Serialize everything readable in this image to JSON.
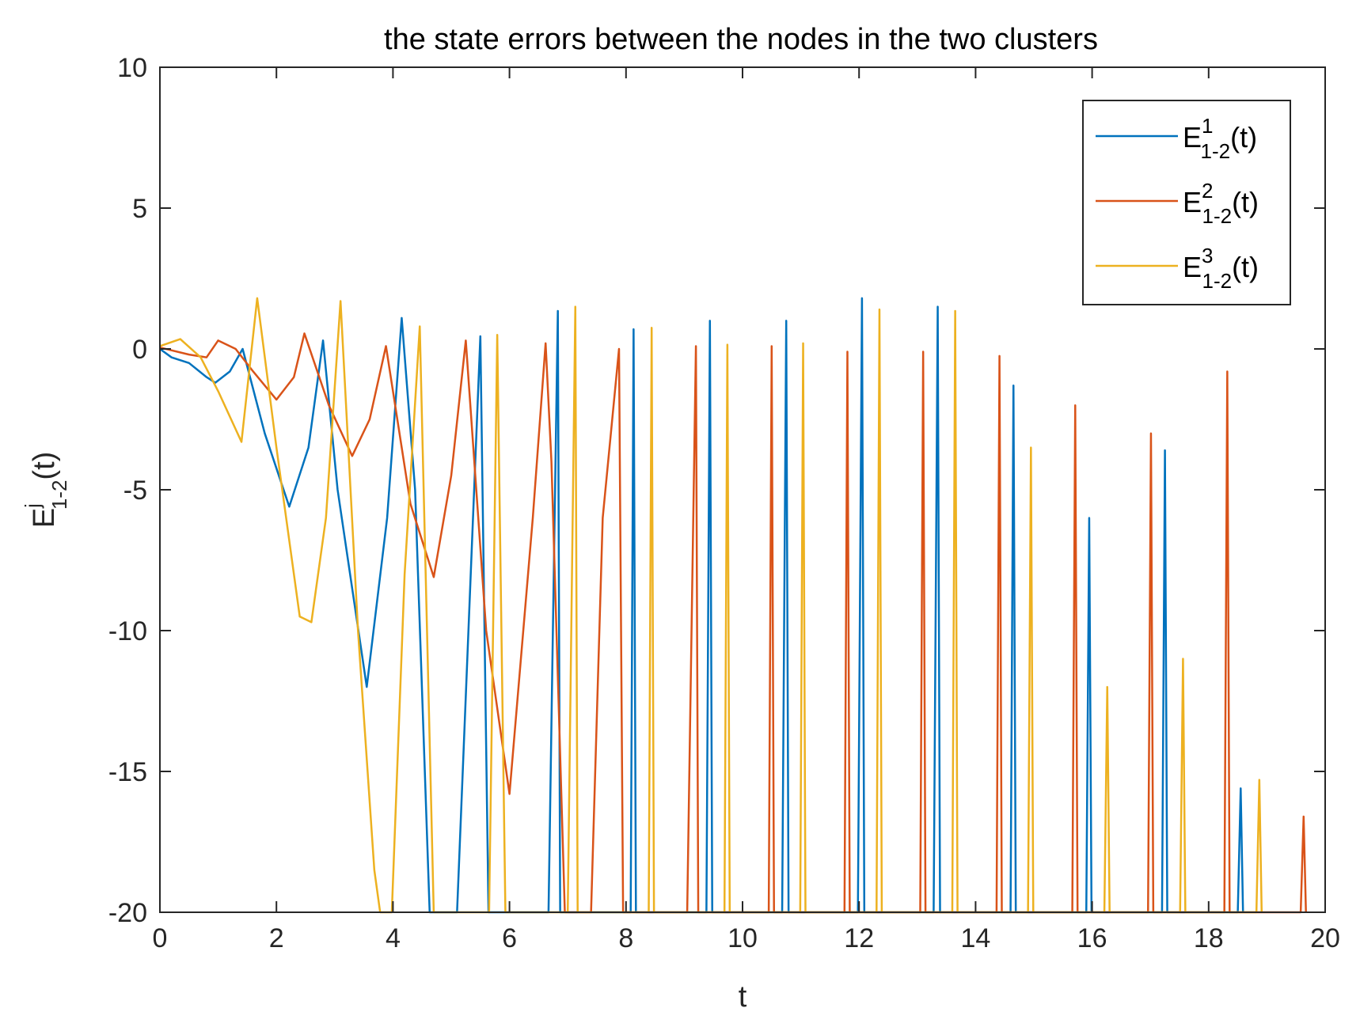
{
  "chart_data": {
    "type": "line",
    "title": "the state errors between the nodes in the two clusters",
    "xlabel": "t",
    "ylabel": {
      "base": "E",
      "superscript": "j",
      "subscript": "1-2",
      "suffix": "(t)"
    },
    "xlim": [
      0,
      20
    ],
    "ylim": [
      -20,
      10
    ],
    "xticks": [
      0,
      2,
      4,
      6,
      8,
      10,
      12,
      14,
      16,
      18,
      20
    ],
    "xtick_labels": [
      "0",
      "2",
      "4",
      "6",
      "8",
      "10",
      "12",
      "14",
      "16",
      "18",
      "20"
    ],
    "yticks": [
      -20,
      -15,
      -10,
      -5,
      0,
      5,
      10
    ],
    "ytick_labels": [
      "-20",
      "-15",
      "-10",
      "-5",
      "0",
      "5",
      "10"
    ],
    "grid": false,
    "legend_position": "top-right",
    "series": [
      {
        "name": "E_{1-2}^{1}(t)",
        "legend": {
          "base": "E",
          "superscript": "1",
          "subscript": "1-2",
          "suffix": "(t)"
        },
        "color": "#0072BD",
        "x": [
          0,
          0.2,
          0.5,
          0.8,
          0.95,
          1.2,
          1.42,
          1.8,
          2.22,
          2.55,
          2.8,
          3.05,
          3.55,
          3.9,
          4.15,
          4.38,
          4.63,
          5.1,
          5.5,
          5.64,
          6.67,
          6.83,
          6.87,
          8.08,
          8.13,
          8.17,
          9.38,
          9.44,
          9.48,
          10.68,
          10.75,
          10.79,
          11.98,
          12.05,
          12.09,
          13.28,
          13.35,
          13.39,
          14.6,
          14.65,
          14.69,
          15.9,
          15.95,
          15.99,
          17.2,
          17.25,
          17.29,
          18.5,
          18.55,
          18.59
        ],
        "y": [
          0,
          -0.3,
          -0.5,
          -1.0,
          -1.2,
          -0.8,
          0.0,
          -3.0,
          -5.6,
          -3.5,
          0.3,
          -5.0,
          -12.0,
          -6.0,
          1.1,
          -5.0,
          -20,
          -20,
          0.45,
          -20,
          -20,
          1.35,
          -20,
          -20,
          0.7,
          -20,
          -20,
          1.0,
          -20,
          -20,
          1.0,
          -20,
          -20,
          1.8,
          -20,
          -20,
          1.5,
          -20,
          -20,
          -1.3,
          -20,
          -20,
          -6.0,
          -20,
          -20,
          -3.6,
          -20,
          -20,
          -15.6,
          -20
        ]
      },
      {
        "name": "E_{1-2}^{2}(t)",
        "legend": {
          "base": "E",
          "superscript": "2",
          "subscript": "1-2",
          "suffix": "(t)"
        },
        "color": "#D95319",
        "x": [
          0,
          0.5,
          0.8,
          1.0,
          1.3,
          1.6,
          2.0,
          2.3,
          2.48,
          2.9,
          3.3,
          3.6,
          3.88,
          4.3,
          4.7,
          5.0,
          5.25,
          5.6,
          6.0,
          6.4,
          6.62,
          6.72,
          6.95,
          7.4,
          7.6,
          7.88,
          7.95,
          9.05,
          9.2,
          9.24,
          10.45,
          10.5,
          10.54,
          11.75,
          11.8,
          11.84,
          13.05,
          13.1,
          13.14,
          14.36,
          14.41,
          14.45,
          15.66,
          15.71,
          15.75,
          16.96,
          17.01,
          17.05,
          18.27,
          18.32,
          18.36,
          19.58,
          19.63,
          19.67
        ],
        "y": [
          0.05,
          -0.2,
          -0.3,
          0.3,
          0.0,
          -0.8,
          -1.8,
          -1.0,
          0.55,
          -2.0,
          -3.8,
          -2.5,
          0.1,
          -5.5,
          -8.1,
          -4.5,
          0.3,
          -10.0,
          -15.8,
          -6.0,
          0.2,
          -4.0,
          -20,
          -20,
          -6.0,
          0.0,
          -20,
          -20,
          0.1,
          -20,
          -20,
          0.1,
          -20,
          -20,
          -0.1,
          -20,
          -20,
          -0.1,
          -20,
          -20,
          -0.25,
          -20,
          -20,
          -2.0,
          -20,
          -20,
          -3.0,
          -20,
          -20,
          -0.8,
          -20,
          -20,
          -16.6,
          -20
        ]
      },
      {
        "name": "E_{1-2}^{3}(t)",
        "legend": {
          "base": "E",
          "superscript": "3",
          "subscript": "1-2",
          "suffix": "(t)"
        },
        "color": "#EDB120",
        "x": [
          0,
          0.35,
          0.7,
          1.0,
          1.4,
          1.67,
          2.0,
          2.4,
          2.6,
          2.85,
          3.1,
          3.4,
          3.68,
          3.78,
          3.98,
          4.2,
          4.46,
          4.7,
          5.65,
          5.79,
          5.93,
          7.0,
          7.13,
          7.17,
          8.39,
          8.44,
          8.48,
          9.69,
          9.74,
          9.78,
          10.99,
          11.04,
          11.08,
          12.3,
          12.35,
          12.39,
          13.6,
          13.65,
          13.69,
          14.9,
          14.95,
          14.99,
          16.21,
          16.26,
          16.3,
          17.51,
          17.56,
          17.6,
          18.82,
          18.87,
          18.91
        ],
        "y": [
          0.1,
          0.35,
          -0.3,
          -1.5,
          -3.3,
          1.8,
          -3.5,
          -9.5,
          -9.7,
          -6.0,
          1.7,
          -10.0,
          -18.5,
          -20,
          -20,
          -8.0,
          0.8,
          -20,
          -20,
          0.5,
          -20,
          -20,
          1.5,
          -20,
          -20,
          0.75,
          -20,
          -20,
          0.15,
          -20,
          -20,
          0.2,
          -20,
          -20,
          1.4,
          -20,
          -20,
          1.35,
          -20,
          -20,
          -3.5,
          -20,
          -20,
          -12.0,
          -20,
          -20,
          -11.0,
          -20,
          -20,
          -15.3,
          -20
        ]
      }
    ]
  }
}
